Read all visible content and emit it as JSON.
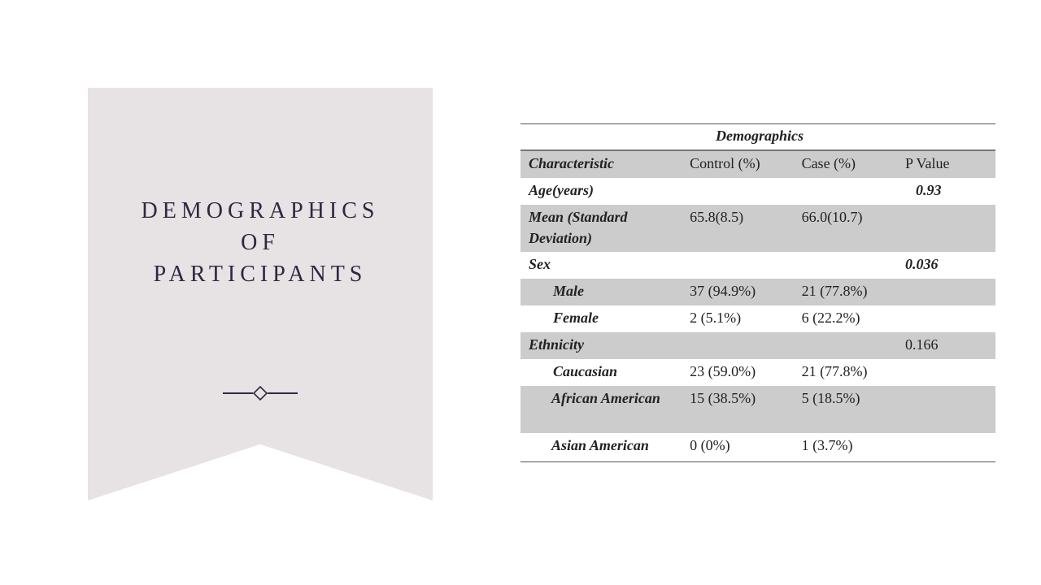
{
  "slide": {
    "title_lines": [
      "DEMOGRAPHICS",
      "OF",
      "PARTICIPANTS"
    ]
  },
  "table": {
    "caption": "Demographics",
    "headers": [
      "Characteristic",
      "Control  (%)",
      "Case  (%)",
      "P Value"
    ],
    "rows": [
      {
        "label": "Age(years)",
        "control": "",
        "case": "",
        "p": "0.93"
      },
      {
        "label": "Mean (Standard Deviation)",
        "control": "65.8(8.5)",
        "case": "66.0(10.7)",
        "p": ""
      },
      {
        "label": "Sex",
        "control": "",
        "case": "",
        "p": "0.036"
      },
      {
        "label": "Male",
        "control": "37  (94.9%)",
        "case": "21  (77.8%)",
        "p": ""
      },
      {
        "label": "Female",
        "control": "2  (5.1%)",
        "case": "6  (22.2%)",
        "p": ""
      },
      {
        "label": "Ethnicity",
        "control": "",
        "case": "",
        "p": "0.166"
      },
      {
        "label": "Caucasian",
        "control": "23  (59.0%)",
        "case": "21  (77.8%)",
        "p": ""
      },
      {
        "label": "African American",
        "control": "15  (38.5%)",
        "case": "5  (18.5%)",
        "p": ""
      },
      {
        "label": "Asian American",
        "control": "0  (0%)",
        "case": "1  (3.7%)",
        "p": ""
      }
    ]
  },
  "colors": {
    "banner": "#e7e2e3",
    "title": "#2e2840",
    "row_shade": "#cccccc"
  }
}
